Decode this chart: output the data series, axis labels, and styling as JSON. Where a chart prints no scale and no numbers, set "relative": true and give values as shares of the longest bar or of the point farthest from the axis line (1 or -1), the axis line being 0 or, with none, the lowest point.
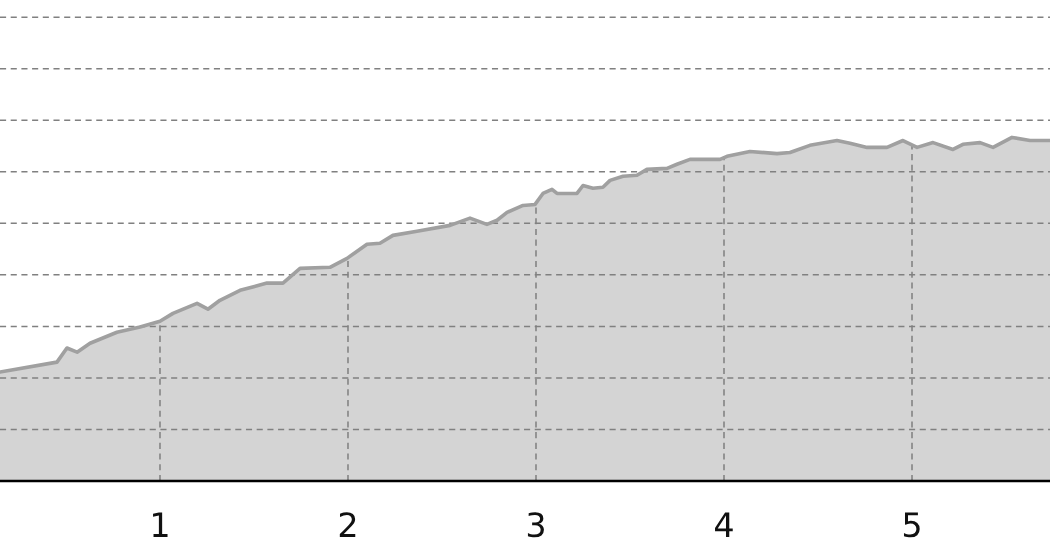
{
  "chart_data": {
    "type": "area",
    "relative": true,
    "grid": true,
    "tick_labels": "x",
    "xlim": [
      0.149,
      5.734
    ],
    "xticks": [
      1,
      2,
      3,
      4,
      5
    ],
    "series": [
      {
        "color": "#a0a0a0",
        "x": [
          0.149,
          0.452,
          0.505,
          0.559,
          0.628,
          0.771,
          0.894,
          1.0,
          1.069,
          1.197,
          1.255,
          1.319,
          1.426,
          1.569,
          1.654,
          1.745,
          1.904,
          1.995,
          2.101,
          2.17,
          2.239,
          2.367,
          2.543,
          2.649,
          2.739,
          2.793,
          2.846,
          2.931,
          2.995,
          3.037,
          3.085,
          3.112,
          3.218,
          3.25,
          3.303,
          3.356,
          3.394,
          3.463,
          3.537,
          3.59,
          3.697,
          3.75,
          3.819,
          3.979,
          4.016,
          4.138,
          4.282,
          4.351,
          4.457,
          4.601,
          4.67,
          4.761,
          4.867,
          4.952,
          5.027,
          5.112,
          5.218,
          5.271,
          5.362,
          5.431,
          5.532,
          5.628,
          5.734
        ],
        "values": [
          0.317,
          0.346,
          0.387,
          0.375,
          0.401,
          0.433,
          0.448,
          0.465,
          0.488,
          0.517,
          0.5,
          0.526,
          0.555,
          0.576,
          0.576,
          0.619,
          0.622,
          0.648,
          0.689,
          0.692,
          0.715,
          0.727,
          0.744,
          0.765,
          0.747,
          0.759,
          0.782,
          0.802,
          0.805,
          0.837,
          0.849,
          0.837,
          0.837,
          0.86,
          0.852,
          0.855,
          0.875,
          0.887,
          0.89,
          0.907,
          0.91,
          0.922,
          0.936,
          0.936,
          0.945,
          0.959,
          0.953,
          0.956,
          0.977,
          0.991,
          0.983,
          0.971,
          0.971,
          0.991,
          0.971,
          0.985,
          0.965,
          0.98,
          0.985,
          0.971,
          1.0,
          0.991,
          0.991
        ]
      }
    ]
  }
}
